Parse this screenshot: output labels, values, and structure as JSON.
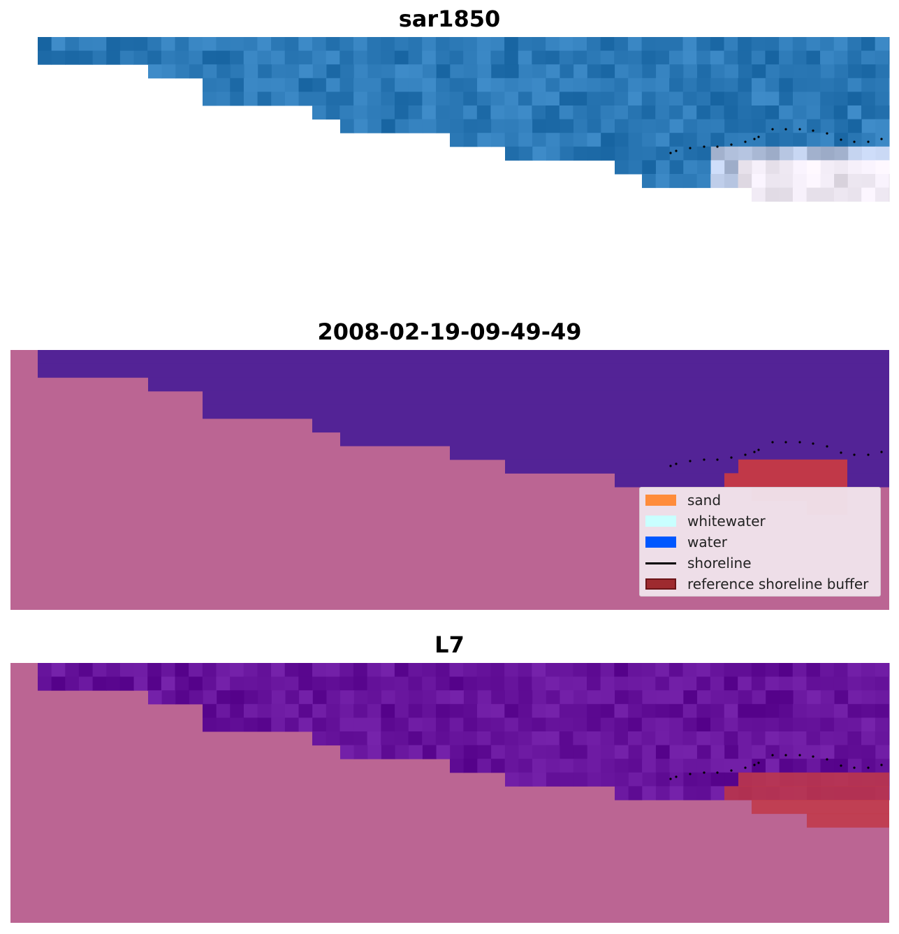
{
  "panels": [
    {
      "title": "sar1850",
      "style": "sar"
    },
    {
      "title": "2008-02-19-09-49-49",
      "style": "classified"
    },
    {
      "title": "L7",
      "style": "landsat"
    }
  ],
  "legend": {
    "items": [
      {
        "label": "sand",
        "color": "#ff8c3b",
        "kind": "patch"
      },
      {
        "label": "whitewater",
        "color": "#c9ffff",
        "kind": "patch"
      },
      {
        "label": "water",
        "color": "#0057ff",
        "kind": "patch"
      },
      {
        "label": "shoreline",
        "color": "#000000",
        "kind": "line"
      },
      {
        "label": "reference shoreline buffer",
        "color": "#9e2a2f",
        "kind": "patch-edged"
      }
    ]
  },
  "colors": {
    "land": "#bb6593",
    "classified_water": "#532396",
    "buffer": "#c13848",
    "sar_water": "#2b78b5",
    "landsat_water": "#65129a",
    "shoreline_dots": "#000000"
  }
}
